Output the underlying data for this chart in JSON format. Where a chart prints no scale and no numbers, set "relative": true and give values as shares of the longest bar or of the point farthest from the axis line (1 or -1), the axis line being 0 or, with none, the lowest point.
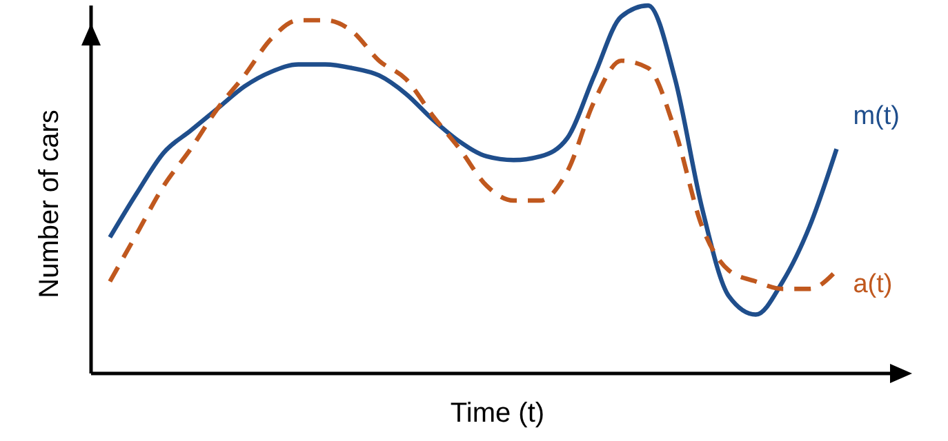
{
  "chart_data": {
    "type": "line",
    "relative": true,
    "xlabel": "Time (t)",
    "ylabel": "Number of cars",
    "legend": false,
    "marker": "none",
    "grid": false,
    "categories": [
      null,
      null,
      null,
      null,
      null,
      null,
      null,
      null,
      null,
      null,
      null,
      null,
      null,
      null,
      null,
      null,
      null,
      null,
      null,
      null,
      null,
      null,
      null,
      null,
      null,
      null,
      null,
      null
    ],
    "series": [
      {
        "name": "m(t)",
        "color": "#1f4e8c",
        "line_style": "solid",
        "values": [
          0.37,
          0.49,
          0.6,
          0.66,
          0.72,
          0.78,
          0.82,
          0.84,
          0.84,
          0.83,
          0.81,
          0.76,
          0.69,
          0.63,
          0.59,
          0.58,
          0.59,
          0.64,
          0.81,
          0.97,
          1,
          0.8,
          0.45,
          0.21,
          0.16,
          0.25,
          0.4,
          0.61
        ]
      },
      {
        "name": "a(t)",
        "color": "#c0581e",
        "line_style": "dashed",
        "values": [
          0.25,
          0.38,
          0.51,
          0.61,
          0.72,
          0.81,
          0.91,
          0.96,
          0.96,
          0.93,
          0.85,
          0.8,
          0.7,
          0.61,
          0.51,
          0.47,
          0.47,
          0.55,
          0.74,
          0.85,
          0.83,
          0.66,
          0.4,
          0.28,
          0.25,
          0.23,
          0.23,
          0.28
        ]
      }
    ]
  }
}
